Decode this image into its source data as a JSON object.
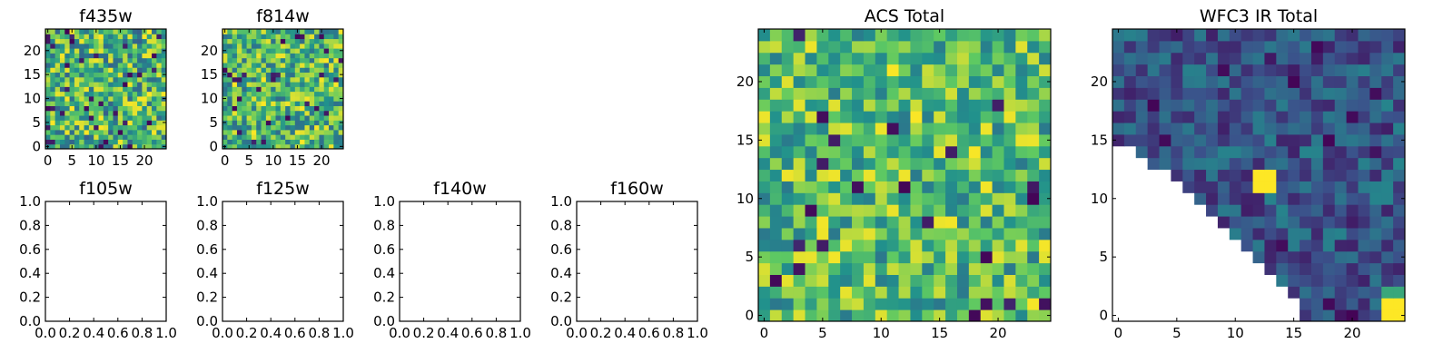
{
  "colormap": [
    "#440154",
    "#3b528b",
    "#21918c",
    "#5ec962",
    "#fde725"
  ],
  "chart_data": [
    {
      "type": "heatmap",
      "panel": "f435w",
      "title": "f435w",
      "grid_size": 25,
      "pattern": "noise",
      "seed": 11,
      "value_range": [
        0.3,
        1.0
      ],
      "dark_fraction": 0.05,
      "xticks": [
        0,
        5,
        10,
        15,
        20
      ],
      "yticks": [
        0,
        5,
        10,
        15,
        20
      ]
    },
    {
      "type": "heatmap",
      "panel": "f814w",
      "title": "f814w",
      "grid_size": 25,
      "pattern": "noise",
      "seed": 23,
      "value_range": [
        0.35,
        1.0
      ],
      "dark_fraction": 0.04,
      "xticks": [
        0,
        5,
        10,
        15,
        20
      ],
      "yticks": [
        0,
        5,
        10,
        15,
        20
      ]
    },
    {
      "type": "heatmap",
      "panel": "f105w",
      "title": "f105w",
      "pattern": "empty",
      "xticks": [
        "0.0",
        "0.2",
        "0.4",
        "0.6",
        "0.8",
        "1.0"
      ],
      "yticks": [
        "0.0",
        "0.2",
        "0.4",
        "0.6",
        "0.8",
        "1.0"
      ]
    },
    {
      "type": "heatmap",
      "panel": "f125w",
      "title": "f125w",
      "pattern": "empty",
      "xticks": [
        "0.0",
        "0.2",
        "0.4",
        "0.6",
        "0.8",
        "1.0"
      ],
      "yticks": [
        "0.0",
        "0.2",
        "0.4",
        "0.6",
        "0.8",
        "1.0"
      ]
    },
    {
      "type": "heatmap",
      "panel": "f140w",
      "title": "f140w",
      "pattern": "empty",
      "xticks": [
        "0.0",
        "0.2",
        "0.4",
        "0.6",
        "0.8",
        "1.0"
      ],
      "yticks": [
        "0.0",
        "0.2",
        "0.4",
        "0.6",
        "0.8",
        "1.0"
      ]
    },
    {
      "type": "heatmap",
      "panel": "f160w",
      "title": "f160w",
      "pattern": "empty",
      "xticks": [
        "0.0",
        "0.2",
        "0.4",
        "0.6",
        "0.8",
        "1.0"
      ],
      "yticks": [
        "0.0",
        "0.2",
        "0.4",
        "0.6",
        "0.8",
        "1.0"
      ]
    },
    {
      "type": "heatmap",
      "panel": "acs-total",
      "title": "ACS Total",
      "grid_size": 25,
      "pattern": "noise",
      "seed": 57,
      "value_range": [
        0.4,
        1.0
      ],
      "dark_fraction": 0.035,
      "xticks": [
        0,
        5,
        10,
        15,
        20
      ],
      "yticks": [
        0,
        5,
        10,
        15,
        20
      ]
    },
    {
      "type": "heatmap",
      "panel": "wfc3-ir-total",
      "title": "WFC3 IR Total",
      "grid_size": 25,
      "pattern": "triangle",
      "seed": 91,
      "value_range": [
        0.1,
        0.45
      ],
      "dark_fraction": 0.05,
      "hotspots": [
        {
          "x": 12,
          "y": 11,
          "w": 2,
          "h": 2,
          "value": 1.0
        },
        {
          "x": 23,
          "y": 0,
          "w": 2,
          "h": 2,
          "value": 1.0
        },
        {
          "x": 23,
          "y": 2,
          "w": 2,
          "h": 1,
          "value": 0.6
        }
      ],
      "xticks": [
        0,
        5,
        10,
        15,
        20
      ],
      "yticks": [
        0,
        5,
        10,
        15,
        20
      ]
    }
  ]
}
